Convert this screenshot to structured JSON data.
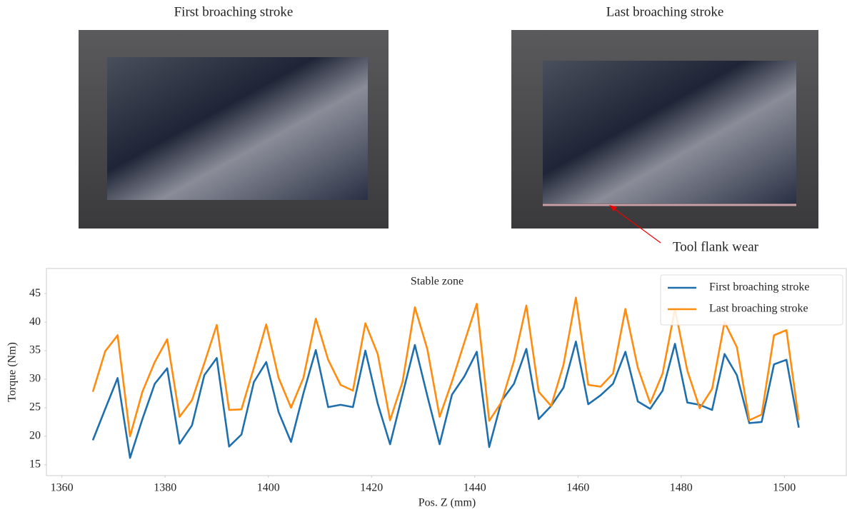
{
  "images": [
    {
      "title": "First broaching stroke"
    },
    {
      "title": "Last broaching stroke",
      "annotation": "Tool flank wear"
    }
  ],
  "chart_data": {
    "type": "line",
    "annotation": "Stable zone",
    "x_label": "Pos. Z (mm)",
    "y_label": "Torque (Nm)",
    "x": [
      1366,
      1368.4,
      1370.8,
      1373.2,
      1375.6,
      1378,
      1380.4,
      1382.8,
      1385.2,
      1387.6,
      1390,
      1392.4,
      1394.8,
      1397.2,
      1399.6,
      1402,
      1404.4,
      1406.8,
      1409.2,
      1411.6,
      1414,
      1416.4,
      1418.8,
      1421.2,
      1423.6,
      1426,
      1428.4,
      1430.8,
      1433.2,
      1435.6,
      1438,
      1440.4,
      1442.8,
      1445.2,
      1447.6,
      1450,
      1452.4,
      1454.8,
      1457.2,
      1459.6,
      1462,
      1464.4,
      1466.8,
      1469.2,
      1471.6,
      1474,
      1476.4,
      1478.8,
      1481.2,
      1483.6,
      1486,
      1488.4,
      1490.8,
      1493.2,
      1495.6,
      1498,
      1500.4,
      1502.8
    ],
    "series": [
      {
        "name": "First broaching stroke",
        "color": "#1f6fad",
        "values": [
          19.3,
          24.8,
          30.2,
          16.2,
          23,
          29.2,
          31.9,
          18.7,
          21.9,
          30.7,
          33.7,
          18.2,
          20.3,
          29.5,
          33,
          24.2,
          19,
          27.5,
          35.1,
          25.1,
          25.5,
          25.1,
          35,
          25.7,
          18.6,
          27.3,
          36,
          27.1,
          18.6,
          27.3,
          30.5,
          34.8,
          18.1,
          26.2,
          29.2,
          35.3,
          23,
          25.3,
          28.5,
          36.6,
          25.6,
          27.2,
          29.2,
          34.8,
          26.1,
          24.8,
          28,
          36.2,
          25.9,
          25.5,
          24.6,
          34.4,
          30.7,
          22.3,
          22.5,
          32.6,
          33.4,
          21.5
        ]
      },
      {
        "name": "Last broaching stroke",
        "color": "#ff8c0e",
        "values": [
          27.8,
          34.9,
          37.7,
          20,
          27.8,
          33,
          37,
          23.4,
          26.3,
          32.8,
          39.5,
          24.6,
          24.7,
          32,
          39.6,
          30.2,
          25,
          30.2,
          40.6,
          33.4,
          29,
          28,
          39.8,
          34.4,
          22.8,
          29.5,
          42.6,
          35.3,
          23.4,
          29.6,
          36.5,
          43.2,
          22.7,
          26,
          33.2,
          42.9,
          27.8,
          25.3,
          32.5,
          44.3,
          29,
          28.7,
          31,
          42.3,
          32,
          25.8,
          31,
          42.3,
          31.5,
          24.9,
          28.3,
          40,
          35.6,
          22.8,
          23.8,
          37.7,
          38.6,
          22.8
        ]
      }
    ],
    "xlim": [
      1357,
      1512
    ],
    "xticks": [
      1360,
      1380,
      1400,
      1420,
      1440,
      1460,
      1480,
      1500
    ],
    "ylim": [
      13.1,
      49.4
    ],
    "yticks": [
      15,
      20,
      25,
      30,
      35,
      40,
      45
    ],
    "legend": "upper right",
    "grid": false
  }
}
